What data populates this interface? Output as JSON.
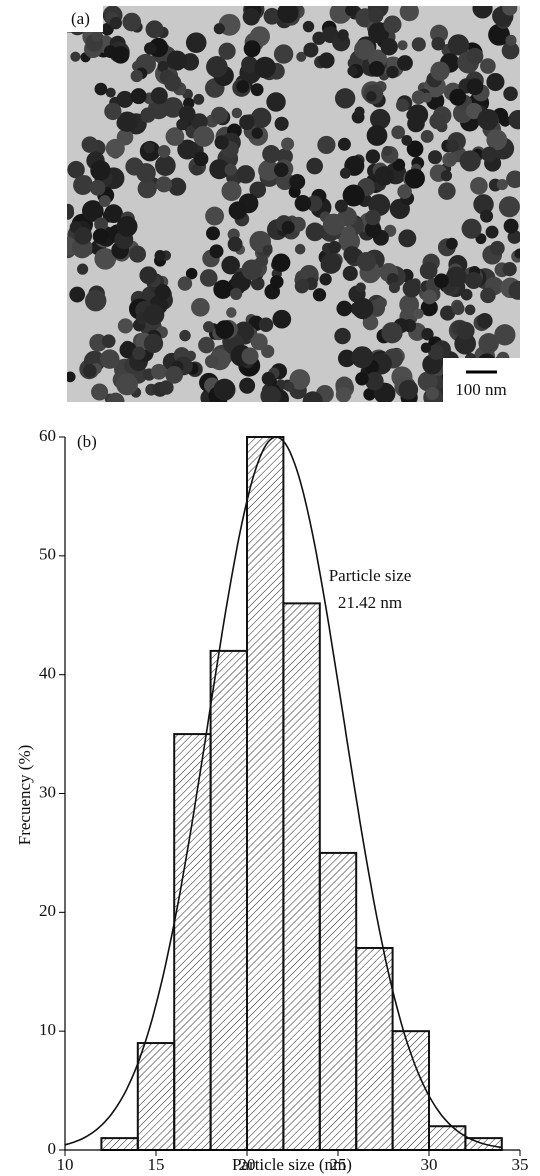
{
  "image": {
    "label": "(a)",
    "scale_bar": "100 nm"
  },
  "chart_data": {
    "type": "histogram",
    "label": "(b)",
    "x_label": "Particle size (nm)",
    "y_label": "Frecuency (%)",
    "annotation": [
      "Particle size",
      "21.42 nm"
    ],
    "bins": [
      12,
      14,
      16,
      18,
      20,
      22,
      24,
      26,
      28,
      30,
      32,
      34
    ],
    "values": [
      1,
      9,
      35,
      42,
      60,
      46,
      25,
      17,
      10,
      2,
      1
    ],
    "fit": {
      "mean": 21.6,
      "sigma": 3.7,
      "amplitude": 60
    },
    "xlim": [
      10,
      35
    ],
    "xticks": [
      10,
      15,
      20,
      25,
      30,
      35
    ],
    "ylim": [
      0,
      60
    ],
    "yticks": [
      0,
      10,
      20,
      30,
      40,
      50,
      60
    ],
    "color": "#111111",
    "hatch": true
  }
}
